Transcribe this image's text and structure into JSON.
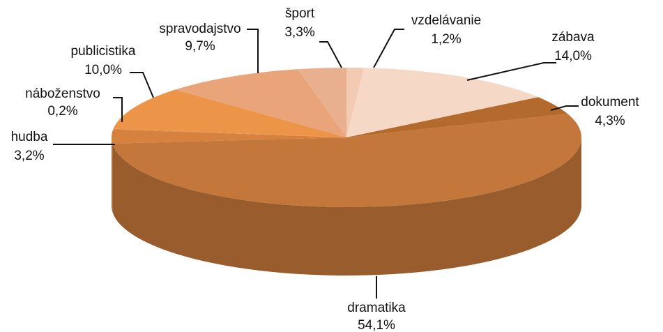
{
  "chart_data": {
    "type": "pie3d",
    "categories": [
      "vzdelávanie",
      "zábava",
      "dokument",
      "dramatika",
      "hudba",
      "náboženstvo",
      "publicistika",
      "spravodajstvo",
      "šport"
    ],
    "values": [
      1.2,
      14.0,
      4.3,
      54.1,
      3.2,
      0.2,
      10.0,
      9.7,
      3.3
    ],
    "value_labels": [
      "1,2%",
      "14,0%",
      "4,3%",
      "54,1%",
      "3,2%",
      "0,2%",
      "10,0%",
      "9,7%",
      "3,3%"
    ],
    "colors": [
      "#f3cbb3",
      "#f6d8c6",
      "#b36a2c",
      "#c4773a",
      "#d6813d",
      "#de8942",
      "#ec9548",
      "#eaa479",
      "#e9b08f"
    ]
  }
}
